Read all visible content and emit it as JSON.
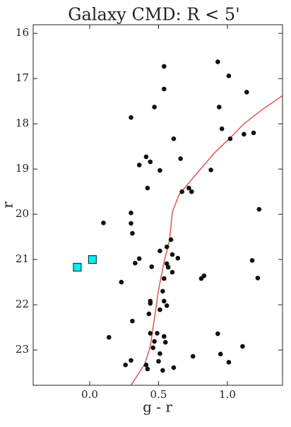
{
  "chart_data": {
    "type": "scatter",
    "title": "Galaxy CMD: R < 5'",
    "x_label": "g - r",
    "y_label": "r",
    "xlim": [
      -0.41,
      1.4
    ],
    "ylim": [
      15.81,
      23.78
    ],
    "y_inverted": true,
    "xticks": [
      {
        "value": 0,
        "label": "0.0"
      },
      {
        "value": 0.5,
        "label": "0.5"
      },
      {
        "value": 1,
        "label": "1.0"
      }
    ],
    "yticks": [
      16,
      17,
      18,
      19,
      20,
      21,
      22,
      23
    ],
    "series": [
      {
        "marker": "circle",
        "color": "#111111",
        "x": [
          0.93,
          0.54,
          1.01,
          0.54,
          1.14,
          0.47,
          0.94,
          0.3,
          0.96,
          1.19,
          1.12,
          1.02,
          0.61,
          0.41,
          0.44,
          0.36,
          0.66,
          0.51,
          0.88,
          0.42,
          0.67,
          0.72,
          0.74,
          1.23,
          0.3,
          0.1,
          0.3,
          0.31,
          0.59,
          0.56,
          0.51,
          0.36,
          0.64,
          0.6,
          0.33,
          0.45,
          0.56,
          0.57,
          1.18,
          0.6,
          0.83,
          0.81,
          1.22,
          0.23,
          0.54,
          0.53,
          0.44,
          0.44,
          0.54,
          0.56,
          0.51,
          0.43,
          0.31,
          0.44,
          0.49,
          0.93,
          0.54,
          0.47,
          0.55,
          0.14,
          0.46,
          1.11,
          0.51,
          0.95,
          0.75,
          0.3,
          1.01,
          0.5,
          0.26,
          0.41,
          0.61,
          0.42,
          0.53
        ],
        "y": [
          16.63,
          16.73,
          16.94,
          17.23,
          17.3,
          17.63,
          17.63,
          17.86,
          18.11,
          18.2,
          18.23,
          18.33,
          18.33,
          18.73,
          18.84,
          18.91,
          18.77,
          19.03,
          19.02,
          19.42,
          19.5,
          19.42,
          19.5,
          19.89,
          19.97,
          20.19,
          20.2,
          20.42,
          20.56,
          20.72,
          20.81,
          20.98,
          20.97,
          20.89,
          21.08,
          21.16,
          21.09,
          21.17,
          21.02,
          21.28,
          21.36,
          21.42,
          21.41,
          21.5,
          21.42,
          21.7,
          21.92,
          21.97,
          21.92,
          22.02,
          22.11,
          22.2,
          22.36,
          22.63,
          22.63,
          22.64,
          22.7,
          22.81,
          22.83,
          22.72,
          22.95,
          22.92,
          23.08,
          23.09,
          23.14,
          23.23,
          23.27,
          23.25,
          23.33,
          23.33,
          23.39,
          23.42,
          23.45
        ]
      },
      {
        "marker": "square",
        "color": "#00f0f0",
        "x": [
          -0.09,
          0.02
        ],
        "y": [
          21.17,
          21.0
        ]
      },
      {
        "marker": "line",
        "color": "#e05555",
        "x": [
          0.3,
          0.4,
          0.44,
          0.47,
          0.5,
          0.54,
          0.58,
          0.6,
          0.65,
          0.78,
          0.91,
          1.02,
          1.12,
          1.25,
          1.4
        ],
        "y": [
          23.78,
          23.31,
          22.92,
          22.3,
          21.67,
          21.05,
          20.58,
          19.95,
          19.56,
          19.09,
          18.63,
          18.31,
          18.0,
          17.69,
          17.38
        ]
      }
    ]
  }
}
